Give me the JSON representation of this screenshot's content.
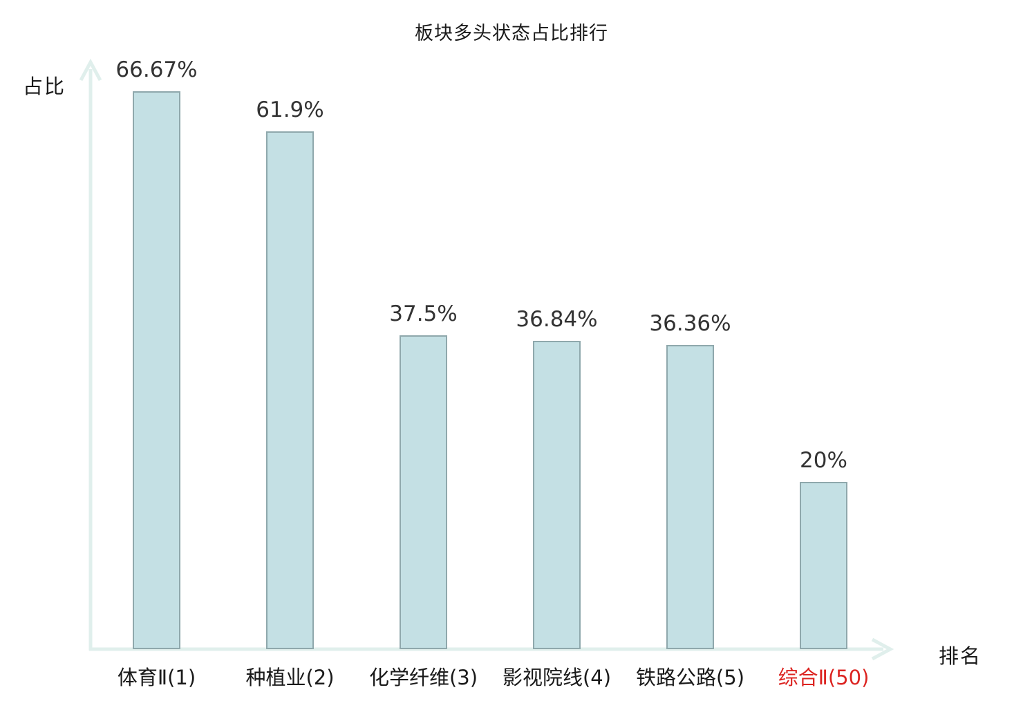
{
  "chart_data": {
    "type": "bar",
    "title": "板块多头状态占比排行",
    "xlabel": "排名",
    "ylabel": "占比",
    "categories": [
      "体育Ⅱ(1)",
      "种植业(2)",
      "化学纤维(3)",
      "影视院线(4)",
      "铁路公路(5)",
      "综合Ⅱ(50)"
    ],
    "values": [
      66.67,
      61.9,
      37.5,
      36.84,
      36.36,
      20
    ],
    "value_labels": [
      "66.67%",
      "61.9%",
      "37.5%",
      "36.84%",
      "36.36%",
      "20%"
    ],
    "category_colors": [
      "#1a1a1a",
      "#1a1a1a",
      "#1a1a1a",
      "#1a1a1a",
      "#1a1a1a",
      "#dc2421"
    ],
    "highlighted_category": "综合Ⅱ(50)",
    "ylim": [
      0,
      66.67
    ],
    "grid": false,
    "legend": null
  },
  "colors": {
    "background": "#ffffff",
    "bar_fill": "#c4e0e4",
    "bar_border": "#8fa8ac",
    "axis": "#e0efec",
    "value_label": "#333333",
    "category_label": "#1a1a1a",
    "highlight": "#dc2421",
    "title": "#1a1a1a"
  }
}
